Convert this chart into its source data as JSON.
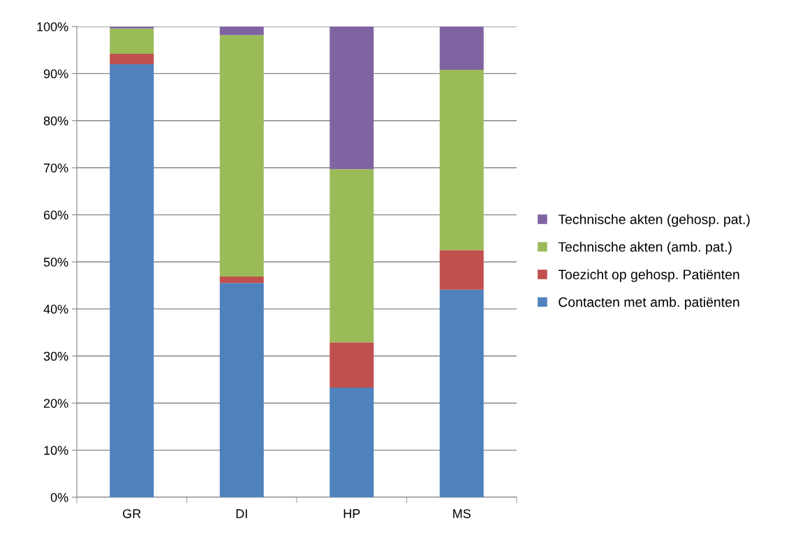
{
  "chart_data": {
    "type": "bar",
    "stacked": true,
    "categories": [
      "GR",
      "DI",
      "HP",
      "MS"
    ],
    "series": [
      {
        "name": "Contacten met amb. patiënten",
        "color": "#4f81bd",
        "values": [
          92.0,
          45.5,
          23.3,
          44.1
        ]
      },
      {
        "name": "Toezicht op gehosp. Patiënten",
        "color": "#c0504d",
        "values": [
          2.2,
          1.4,
          9.6,
          8.4
        ]
      },
      {
        "name": "Technische akten (amb. pat.)",
        "color": "#9bbb59",
        "values": [
          5.4,
          51.3,
          36.8,
          38.3
        ]
      },
      {
        "name": "Technische akten (gehosp. pat.)",
        "color": "#8064a2",
        "values": [
          0.4,
          1.8,
          30.3,
          9.2
        ]
      }
    ],
    "ylim": [
      0,
      100
    ],
    "yticks": [
      {
        "value": 0,
        "label": "0%"
      },
      {
        "value": 10,
        "label": "10%"
      },
      {
        "value": 20,
        "label": "20%"
      },
      {
        "value": 30,
        "label": "30%"
      },
      {
        "value": 40,
        "label": "40%"
      },
      {
        "value": 50,
        "label": "50%"
      },
      {
        "value": 60,
        "label": "60%"
      },
      {
        "value": 70,
        "label": "70%"
      },
      {
        "value": 80,
        "label": "80%"
      },
      {
        "value": 90,
        "label": "90%"
      },
      {
        "value": 100,
        "label": "100%"
      }
    ],
    "grid": "y",
    "legend": "right"
  }
}
